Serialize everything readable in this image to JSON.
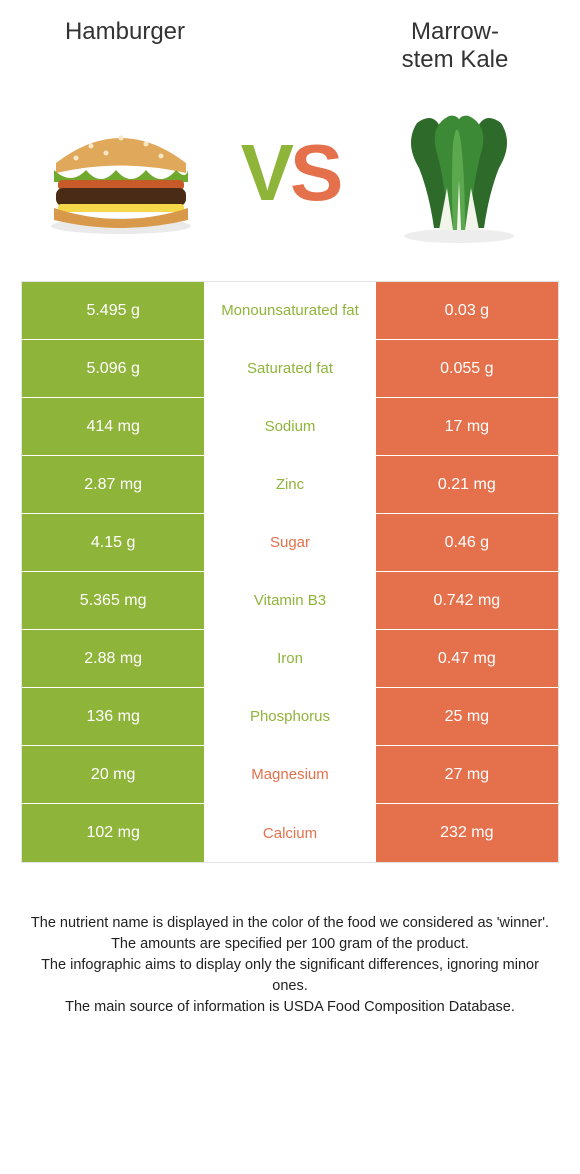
{
  "colors": {
    "left": "#8fb43a",
    "right": "#e4714c",
    "vs_left": "#8fb43a",
    "vs_right": "#e4714c"
  },
  "header": {
    "left": "Hamburger",
    "right_line1": "Marrow-",
    "right_line2": "stem Kale"
  },
  "rows": [
    {
      "left": "5.495 g",
      "label": "Monounsaturated fat",
      "right": "0.03 g",
      "winner": "left"
    },
    {
      "left": "5.096 g",
      "label": "Saturated fat",
      "right": "0.055 g",
      "winner": "left"
    },
    {
      "left": "414 mg",
      "label": "Sodium",
      "right": "17 mg",
      "winner": "left"
    },
    {
      "left": "2.87 mg",
      "label": "Zinc",
      "right": "0.21 mg",
      "winner": "left"
    },
    {
      "left": "4.15 g",
      "label": "Sugar",
      "right": "0.46 g",
      "winner": "right"
    },
    {
      "left": "5.365 mg",
      "label": "Vitamin B3",
      "right": "0.742 mg",
      "winner": "left"
    },
    {
      "left": "2.88 mg",
      "label": "Iron",
      "right": "0.47 mg",
      "winner": "left"
    },
    {
      "left": "136 mg",
      "label": "Phosphorus",
      "right": "25 mg",
      "winner": "left"
    },
    {
      "left": "20 mg",
      "label": "Magnesium",
      "right": "27 mg",
      "winner": "right"
    },
    {
      "left": "102 mg",
      "label": "Calcium",
      "right": "232 mg",
      "winner": "right"
    }
  ],
  "footnotes": [
    "The nutrient name is displayed in the color of the food we considered as 'winner'.",
    "The amounts are specified per 100 gram of the product.",
    "The infographic aims to display only the significant differences, ignoring minor ones.",
    "The main source of information is USDA Food Composition Database."
  ]
}
